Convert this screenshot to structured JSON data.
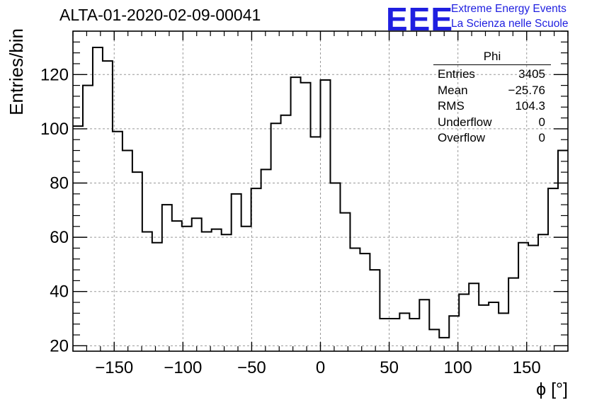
{
  "title": "ALTA-01-2020-02-09-00041",
  "logo": {
    "mark": "EEE",
    "line1": "Extreme Energy Events",
    "line2": "La Scienza nelle Scuole",
    "color": "#1f1fe0"
  },
  "stats": {
    "name": "Phi",
    "rows": [
      {
        "label": "Entries",
        "value": "3405"
      },
      {
        "label": "Mean",
        "value": "−25.76"
      },
      {
        "label": "RMS",
        "value": "104.3"
      },
      {
        "label": "Underflow",
        "value": "0"
      },
      {
        "label": "Overflow",
        "value": "0"
      }
    ]
  },
  "chart_data": {
    "type": "bar",
    "style": "step-histogram",
    "xlabel": "ϕ [°]",
    "ylabel": "Entries/bin",
    "xlim": [
      -180,
      180
    ],
    "ylim": [
      18,
      136
    ],
    "grid": true,
    "x_ticks": [
      -150,
      -100,
      -50,
      0,
      50,
      100,
      150
    ],
    "x_tick_labels": [
      "−150",
      "−100",
      "−50",
      "0",
      "50",
      "100",
      "150"
    ],
    "y_ticks": [
      20,
      40,
      60,
      80,
      100,
      120
    ],
    "y_tick_labels": [
      "20",
      "40",
      "60",
      "80",
      "100",
      "120"
    ],
    "bin_width": 7.2,
    "bin_start": -180,
    "values": [
      101,
      116,
      130,
      125,
      99,
      92,
      84,
      62,
      58,
      72,
      66,
      64,
      67,
      62,
      63,
      61,
      76,
      64,
      78,
      85,
      102,
      105,
      119,
      117,
      97,
      118,
      80,
      69,
      56,
      54,
      48,
      30,
      30,
      32,
      30,
      37,
      26,
      23,
      31,
      39,
      43,
      35,
      36,
      32,
      45,
      58,
      57,
      61,
      78,
      92
    ],
    "line_color": "#000000"
  }
}
